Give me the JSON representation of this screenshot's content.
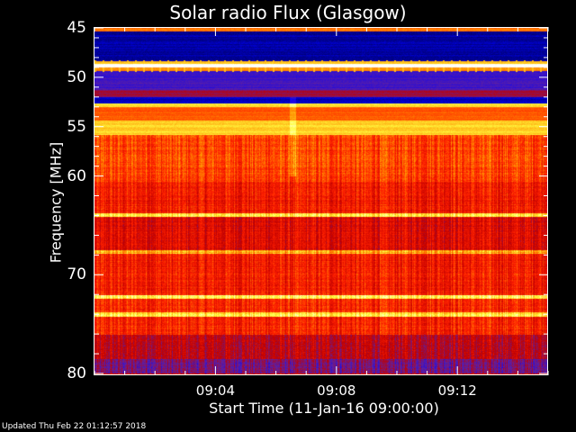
{
  "chart_data": {
    "type": "heatmap",
    "title": "Solar radio Flux (Glasgow)",
    "xlabel": "Start Time (11-Jan-16 09:00:00)",
    "ylabel": "Frequency [MHz]",
    "x_tick_labels": [
      "09:04",
      "09:08",
      "09:12"
    ],
    "x_ticks_minutes": [
      4,
      8,
      12
    ],
    "xlim_minutes": [
      0,
      15
    ],
    "y_tick_labels": [
      "45",
      "50",
      "55",
      "60",
      "70",
      "80"
    ],
    "y_ticks": [
      45,
      50,
      55,
      60,
      70,
      80
    ],
    "ylim": [
      80,
      45
    ],
    "colormap": [
      "#000000",
      "#000060",
      "#0000ff",
      "#6020a0",
      "#c00000",
      "#ff2000",
      "#ff9000",
      "#ffff40",
      "#ffffff"
    ],
    "band_intensity": [
      {
        "from": 45,
        "to": 45.3,
        "level": 0.72
      },
      {
        "from": 45.3,
        "to": 48.3,
        "level": 0.18
      },
      {
        "from": 48.3,
        "to": 48.6,
        "level": 0.8
      },
      {
        "from": 48.6,
        "to": 49.0,
        "level": 1.0
      },
      {
        "from": 49.0,
        "to": 49.3,
        "level": 0.75
      },
      {
        "from": 49.3,
        "to": 51.2,
        "level": 0.33
      },
      {
        "from": 51.2,
        "to": 52.0,
        "level": 0.45
      },
      {
        "from": 52.0,
        "to": 52.6,
        "level": 0.2
      },
      {
        "from": 52.6,
        "to": 53.0,
        "level": 0.85
      },
      {
        "from": 53.0,
        "to": 54.3,
        "level": 0.68
      },
      {
        "from": 54.3,
        "to": 55.8,
        "level": 0.82
      },
      {
        "from": 55.8,
        "to": 60.5,
        "level": 0.66
      },
      {
        "from": 60.5,
        "to": 63.7,
        "level": 0.6
      },
      {
        "from": 63.7,
        "to": 64.1,
        "level": 0.85
      },
      {
        "from": 64.1,
        "to": 67.5,
        "level": 0.55
      },
      {
        "from": 67.5,
        "to": 67.8,
        "level": 0.78
      },
      {
        "from": 67.8,
        "to": 72.0,
        "level": 0.6
      },
      {
        "from": 72.0,
        "to": 72.4,
        "level": 0.88
      },
      {
        "from": 72.4,
        "to": 73.8,
        "level": 0.62
      },
      {
        "from": 73.8,
        "to": 74.2,
        "level": 0.86
      },
      {
        "from": 74.2,
        "to": 76.0,
        "level": 0.62
      },
      {
        "from": 76.0,
        "to": 78.5,
        "level": 0.5
      },
      {
        "from": 78.5,
        "to": 80.0,
        "level": 0.4
      }
    ]
  },
  "footer": {
    "updated": "Updated Thu Feb 22 01:12:57 2018"
  }
}
